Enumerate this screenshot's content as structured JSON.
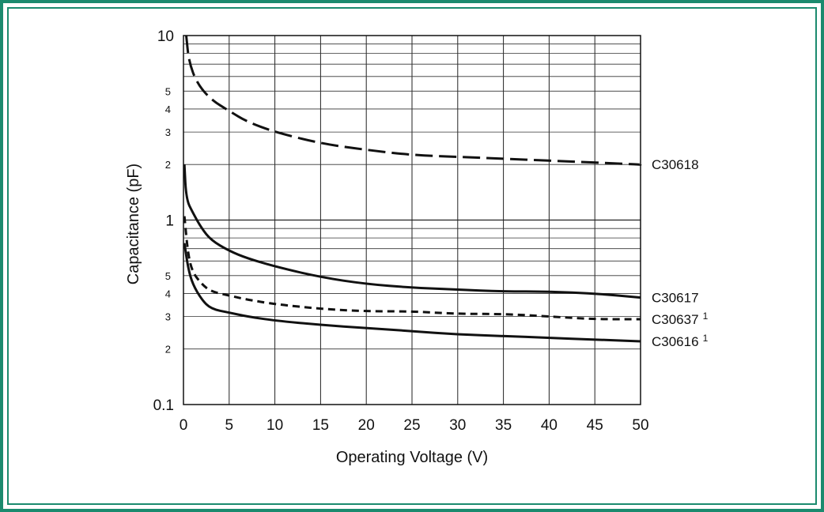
{
  "frame_color": "#1b8a6e",
  "chart_data": {
    "type": "line",
    "title": "",
    "xlabel": "Operating Voltage (V)",
    "ylabel": "Capacitance (pF)",
    "xlim": [
      0,
      50
    ],
    "ylim": [
      0.1,
      10
    ],
    "yscale": "log",
    "grid": true,
    "x_ticks": [
      "0",
      "5",
      "10",
      "15",
      "20",
      "25",
      "30",
      "35",
      "40",
      "45",
      "50"
    ],
    "y_major_ticks": [
      {
        "value": 10,
        "label": "10"
      },
      {
        "value": 1,
        "label": "1"
      },
      {
        "value": 0.1,
        "label": "0.1"
      }
    ],
    "y_minor_ticks": [
      {
        "value": 5,
        "label": "5"
      },
      {
        "value": 4,
        "label": "4"
      },
      {
        "value": 3,
        "label": "3"
      },
      {
        "value": 2,
        "label": "2"
      },
      {
        "value": 0.5,
        "label": "5"
      },
      {
        "value": 0.4,
        "label": "4"
      },
      {
        "value": 0.3,
        "label": "3"
      },
      {
        "value": 0.2,
        "label": "2"
      }
    ],
    "series": [
      {
        "name": "C30618",
        "superscript": "",
        "style": "long-dash",
        "x": [
          0.3,
          0.6,
          1.5,
          3,
          5,
          7,
          10,
          15,
          20,
          25,
          30,
          35,
          40,
          45,
          50
        ],
        "y": [
          10,
          7.2,
          5.5,
          4.5,
          3.9,
          3.4,
          3.0,
          2.6,
          2.4,
          2.25,
          2.2,
          2.15,
          2.1,
          2.05,
          2.0
        ]
      },
      {
        "name": "C30617",
        "superscript": "",
        "style": "solid",
        "x": [
          0.1,
          0.3,
          1,
          2,
          3,
          5,
          7,
          10,
          15,
          20,
          25,
          30,
          35,
          40,
          45,
          50
        ],
        "y": [
          2.0,
          1.3,
          1.1,
          0.9,
          0.78,
          0.68,
          0.62,
          0.56,
          0.49,
          0.45,
          0.43,
          0.42,
          0.41,
          0.41,
          0.4,
          0.38
        ]
      },
      {
        "name": "C30637",
        "superscript": "1",
        "style": "short-dash",
        "x": [
          0.1,
          0.5,
          1,
          2,
          3,
          5,
          7,
          10,
          15,
          20,
          25,
          30,
          35,
          40,
          45,
          50
        ],
        "y": [
          1.05,
          0.65,
          0.52,
          0.45,
          0.41,
          0.39,
          0.37,
          0.35,
          0.33,
          0.32,
          0.32,
          0.31,
          0.31,
          0.3,
          0.29,
          0.29
        ]
      },
      {
        "name": "C30616",
        "superscript": "1",
        "style": "solid",
        "x": [
          0.1,
          0.5,
          1,
          2,
          3,
          5,
          7,
          10,
          15,
          20,
          25,
          30,
          35,
          40,
          45,
          50
        ],
        "y": [
          0.75,
          0.55,
          0.45,
          0.37,
          0.33,
          0.315,
          0.3,
          0.285,
          0.27,
          0.26,
          0.25,
          0.24,
          0.235,
          0.23,
          0.225,
          0.22
        ]
      }
    ]
  }
}
